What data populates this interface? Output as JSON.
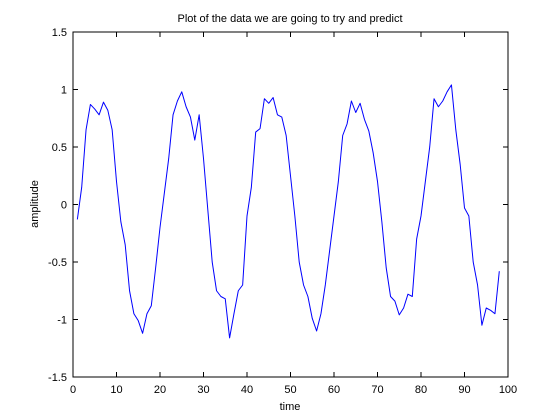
{
  "chart_data": {
    "type": "line",
    "title": "Plot of the data we are going to try and predict",
    "xlabel": "time",
    "ylabel": "amplitude",
    "xlim": [
      0,
      100
    ],
    "ylim": [
      -1.5,
      1.5
    ],
    "xticks": [
      0,
      10,
      20,
      30,
      40,
      50,
      60,
      70,
      80,
      90,
      100
    ],
    "yticks": [
      -1.5,
      -1,
      -0.5,
      0,
      0.5,
      1,
      1.5
    ],
    "xtick_labels": [
      "0",
      "10",
      "20",
      "30",
      "40",
      "50",
      "60",
      "70",
      "80",
      "90",
      "100"
    ],
    "ytick_labels": [
      "-1.5",
      "-1",
      "-0.5",
      "0",
      "0.5",
      "1",
      "1.5"
    ],
    "grid": false,
    "legend": "none",
    "series": [
      {
        "color": "#0000ff",
        "x": [
          1,
          2,
          3,
          4,
          5,
          6,
          7,
          8,
          9,
          10,
          11,
          12,
          13,
          14,
          15,
          16,
          17,
          18,
          19,
          20,
          21,
          22,
          23,
          24,
          25,
          26,
          27,
          28,
          29,
          30,
          31,
          32,
          33,
          34,
          35,
          36,
          37,
          38,
          39,
          40,
          41,
          42,
          43,
          44,
          45,
          46,
          47,
          48,
          49,
          50,
          51,
          52,
          53,
          54,
          55,
          56,
          57,
          58,
          59,
          60,
          61,
          62,
          63,
          64,
          65,
          66,
          67,
          68,
          69,
          70,
          71,
          72,
          73,
          74,
          75,
          76,
          77,
          78,
          79,
          80,
          81,
          82,
          83,
          84,
          85,
          86,
          87,
          88,
          89,
          90,
          91,
          92,
          93,
          94,
          95,
          96,
          97,
          98
        ],
        "y": [
          -0.13,
          0.15,
          0.65,
          0.87,
          0.83,
          0.78,
          0.89,
          0.82,
          0.65,
          0.2,
          -0.15,
          -0.35,
          -0.75,
          -0.95,
          -1.01,
          -1.12,
          -0.95,
          -0.88,
          -0.55,
          -0.2,
          0.1,
          0.4,
          0.78,
          0.9,
          0.98,
          0.85,
          0.76,
          0.56,
          0.78,
          0.4,
          -0.05,
          -0.5,
          -0.75,
          -0.8,
          -0.82,
          -1.16,
          -0.95,
          -0.75,
          -0.7,
          -0.1,
          0.15,
          0.63,
          0.66,
          0.92,
          0.88,
          0.93,
          0.78,
          0.76,
          0.6,
          0.25,
          -0.1,
          -0.5,
          -0.7,
          -0.8,
          -0.99,
          -1.1,
          -0.95,
          -0.7,
          -0.4,
          -0.1,
          0.2,
          0.6,
          0.7,
          0.9,
          0.8,
          0.88,
          0.74,
          0.64,
          0.45,
          0.2,
          -0.15,
          -0.55,
          -0.8,
          -0.84,
          -0.96,
          -0.9,
          -0.78,
          -0.8,
          -0.3,
          -0.1,
          0.2,
          0.5,
          0.92,
          0.85,
          0.9,
          0.98,
          1.04,
          0.65,
          0.35,
          -0.03,
          -0.1,
          -0.5,
          -0.7,
          -1.05,
          -0.9,
          -0.92,
          -0.95,
          -0.58
        ]
      }
    ]
  }
}
